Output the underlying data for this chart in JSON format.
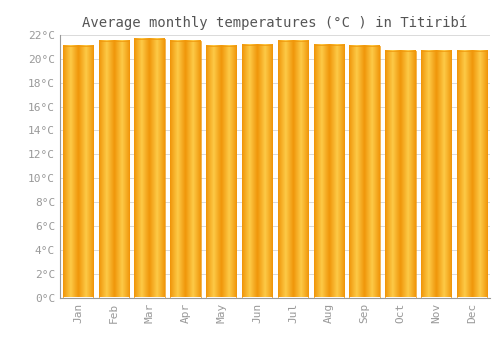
{
  "title": "Average monthly temperatures (°C ) in Titiribí",
  "months": [
    "Jan",
    "Feb",
    "Mar",
    "Apr",
    "May",
    "Jun",
    "Jul",
    "Aug",
    "Sep",
    "Oct",
    "Nov",
    "Dec"
  ],
  "temperatures": [
    21.1,
    21.5,
    21.7,
    21.5,
    21.1,
    21.2,
    21.5,
    21.2,
    21.1,
    20.7,
    20.7,
    20.7
  ],
  "bar_color_light": "#FDCA47",
  "bar_color_dark": "#F0960A",
  "background_color": "#FFFFFF",
  "plot_bg_color": "#FFFFFF",
  "grid_color": "#CCCCCC",
  "ylim": [
    0,
    22
  ],
  "yticks": [
    0,
    2,
    4,
    6,
    8,
    10,
    12,
    14,
    16,
    18,
    20,
    22
  ],
  "tick_label_color": "#999999",
  "title_color": "#555555",
  "title_fontsize": 10,
  "tick_fontsize": 8,
  "xlabel_rotation": 90,
  "bar_width": 0.85
}
